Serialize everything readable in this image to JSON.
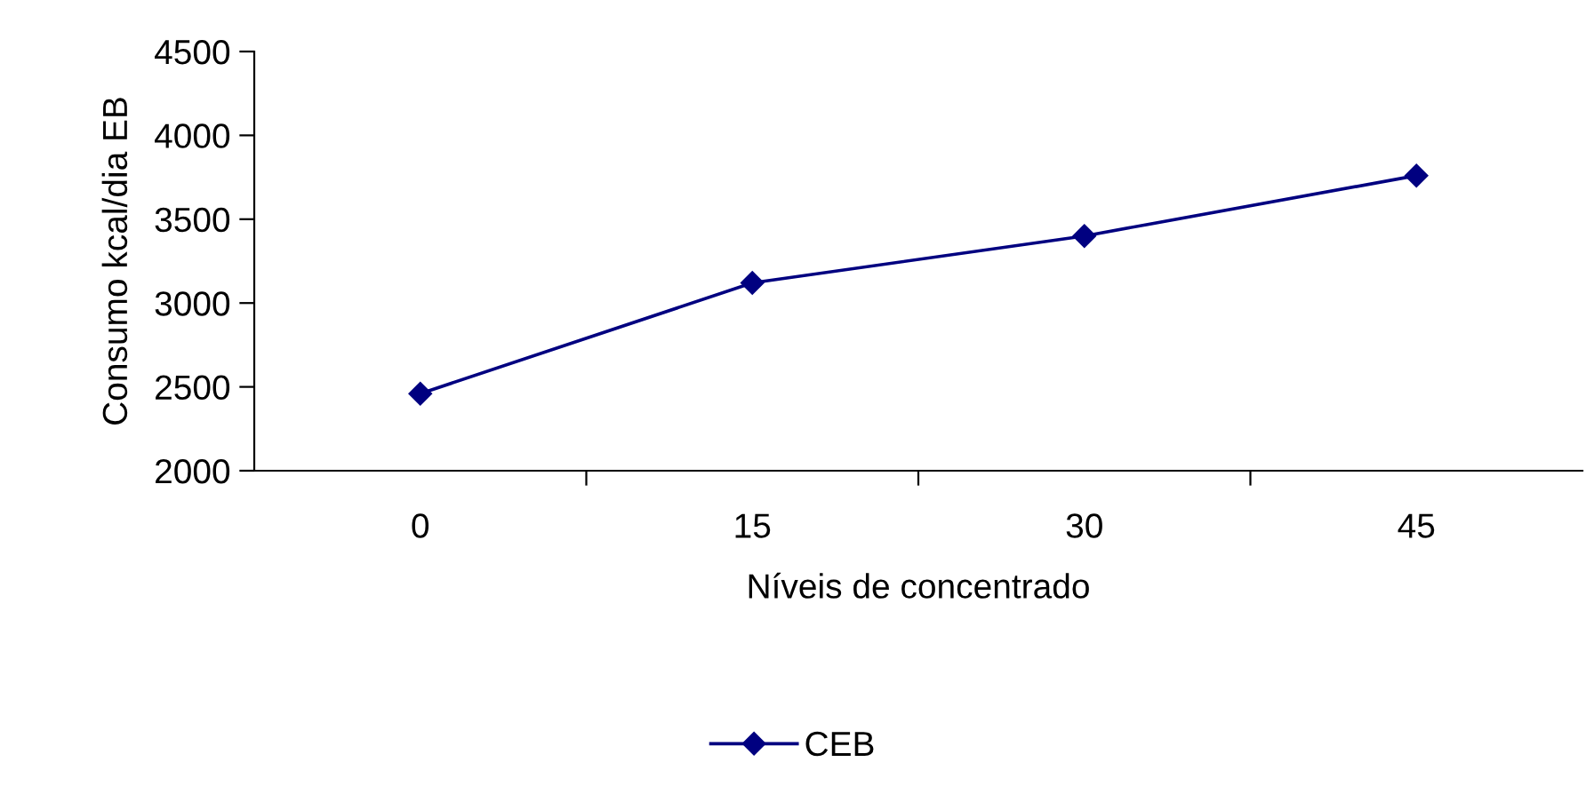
{
  "chart_data": {
    "type": "line",
    "xlabel": "Níveis de concentrado",
    "ylabel": "Consumo kcal/dia EB",
    "categories": [
      "0",
      "15",
      "30",
      "45"
    ],
    "series": [
      {
        "name": "CEB",
        "color": "#000080",
        "values": [
          2460,
          3120,
          3400,
          3760
        ]
      }
    ],
    "ylim": [
      2000,
      4500
    ],
    "yticks": [
      2000,
      2500,
      3000,
      3500,
      4000,
      4500
    ],
    "grid": false,
    "legend": "bottom",
    "marker": "diamond",
    "line_style": "solid"
  }
}
